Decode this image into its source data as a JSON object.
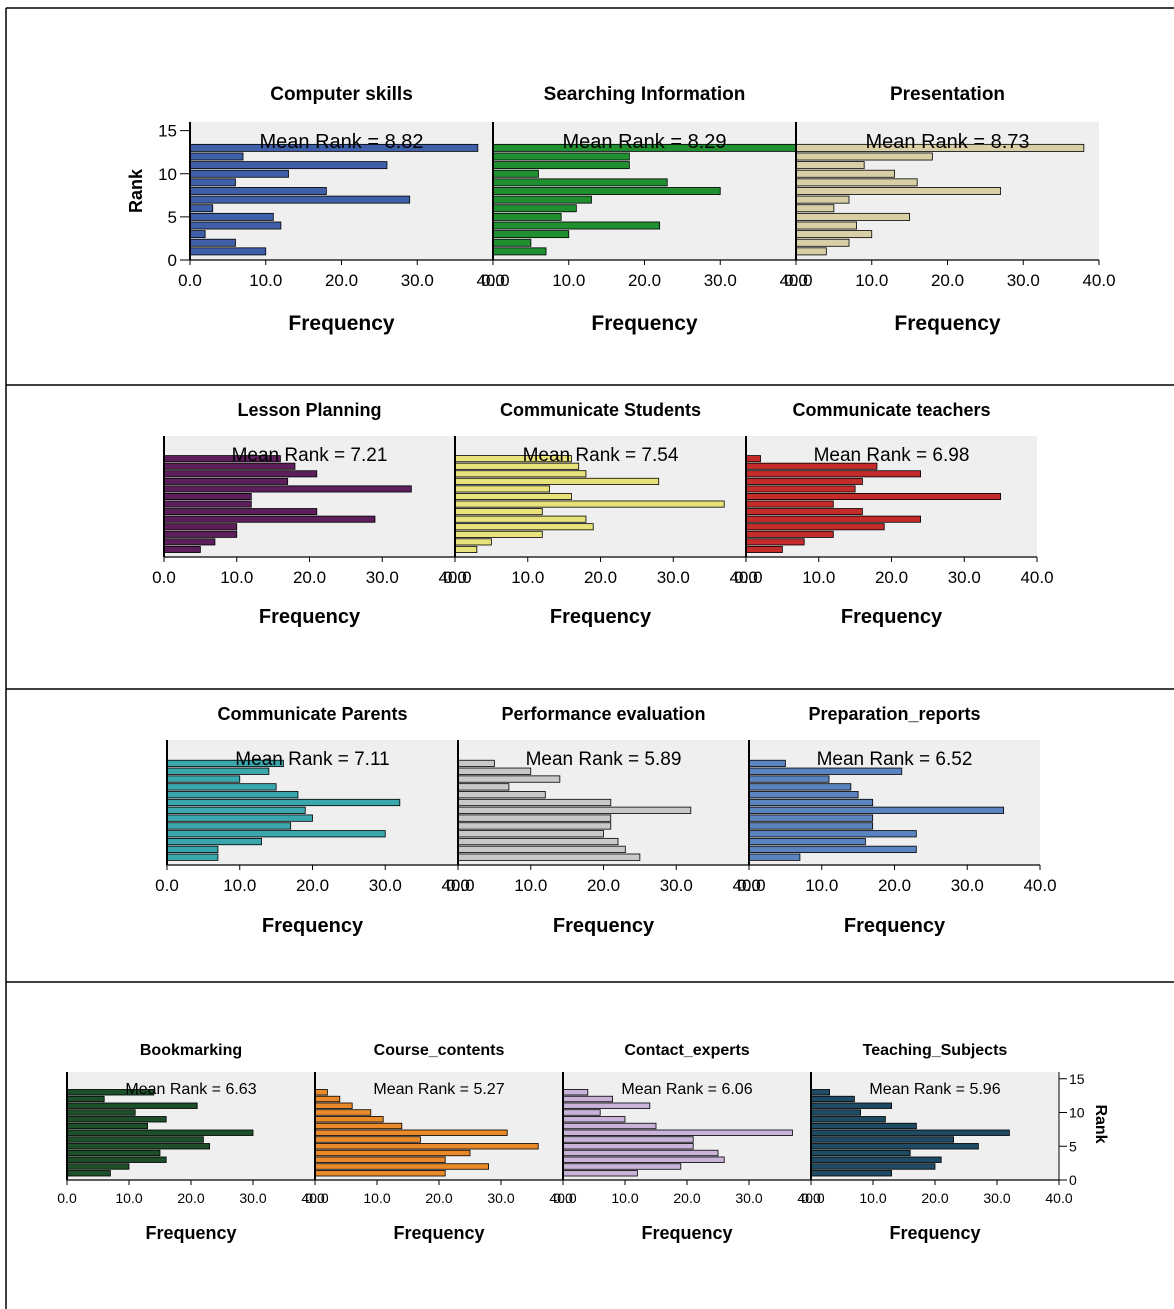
{
  "figure": {
    "x_axis_label": "Frequency",
    "y_axis_label": "Rank",
    "x_ticks": [
      "0.0",
      "10.0",
      "20.0",
      "30.0",
      "40.0"
    ],
    "y_ticks": [
      "0",
      "5",
      "10",
      "15"
    ],
    "plot_background": "#efefef"
  },
  "chart_data": [
    {
      "type": "bar",
      "orientation": "horizontal",
      "title": "Computer skills",
      "annotation": "Mean Rank = 8.82",
      "color": "#3f5fa8",
      "xlim": [
        0,
        40
      ],
      "ylim": [
        0,
        16
      ],
      "xlabel": "Frequency",
      "ylabel": "Rank",
      "ranks": [
        1,
        2,
        3,
        4,
        5,
        6,
        7,
        8,
        9,
        10,
        11,
        12,
        13
      ],
      "values": [
        10,
        6,
        2,
        12,
        11,
        3,
        29,
        18,
        6,
        13,
        26,
        7,
        38
      ]
    },
    {
      "type": "bar",
      "orientation": "horizontal",
      "title": "Searching Information",
      "annotation": "Mean Rank = 8.29",
      "color": "#1f8f2f",
      "xlim": [
        0,
        40
      ],
      "ylim": [
        0,
        16
      ],
      "xlabel": "Frequency",
      "ylabel": "",
      "ranks": [
        1,
        2,
        3,
        4,
        5,
        6,
        7,
        8,
        9,
        10,
        11,
        12,
        13
      ],
      "values": [
        7,
        5,
        10,
        22,
        9,
        11,
        13,
        30,
        23,
        6,
        18,
        18,
        40
      ]
    },
    {
      "type": "bar",
      "orientation": "horizontal",
      "title": "Presentation",
      "annotation": "Mean Rank = 8.73",
      "color": "#d9cfa6",
      "xlim": [
        0,
        40
      ],
      "ylim": [
        0,
        16
      ],
      "xlabel": "Frequency",
      "ylabel": "",
      "ranks": [
        1,
        2,
        3,
        4,
        5,
        6,
        7,
        8,
        9,
        10,
        11,
        12,
        13
      ],
      "values": [
        4,
        7,
        10,
        8,
        15,
        5,
        7,
        27,
        16,
        13,
        9,
        18,
        38
      ]
    },
    {
      "type": "bar",
      "orientation": "horizontal",
      "title": "Lesson Planning",
      "annotation": "Mean Rank = 7.21",
      "color": "#5c1f5c",
      "xlim": [
        0,
        40
      ],
      "ylim": [
        0,
        16
      ],
      "xlabel": "Frequency",
      "ylabel": "",
      "ranks": [
        1,
        2,
        3,
        4,
        5,
        6,
        7,
        8,
        9,
        10,
        11,
        12,
        13
      ],
      "values": [
        5,
        7,
        10,
        10,
        29,
        21,
        12,
        12,
        34,
        17,
        21,
        18,
        16
      ]
    },
    {
      "type": "bar",
      "orientation": "horizontal",
      "title": "Communicate Students",
      "annotation": "Mean Rank = 7.54",
      "color": "#e8e27a",
      "xlim": [
        0,
        40
      ],
      "ylim": [
        0,
        16
      ],
      "xlabel": "Frequency",
      "ylabel": "",
      "ranks": [
        1,
        2,
        3,
        4,
        5,
        6,
        7,
        8,
        9,
        10,
        11,
        12,
        13
      ],
      "values": [
        3,
        5,
        12,
        19,
        18,
        12,
        37,
        16,
        13,
        28,
        18,
        17,
        16
      ]
    },
    {
      "type": "bar",
      "orientation": "horizontal",
      "title": "Communicate teachers",
      "annotation": "Mean Rank = 6.98",
      "color": "#c42b2b",
      "xlim": [
        0,
        40
      ],
      "ylim": [
        0,
        16
      ],
      "xlabel": "Frequency",
      "ylabel": "",
      "ranks": [
        1,
        2,
        3,
        4,
        5,
        6,
        7,
        8,
        9,
        10,
        11,
        12,
        13
      ],
      "values": [
        5,
        8,
        12,
        19,
        24,
        16,
        12,
        35,
        15,
        16,
        24,
        18,
        2
      ]
    },
    {
      "type": "bar",
      "orientation": "horizontal",
      "title": "Communicate Parents",
      "annotation": "Mean Rank = 7.11",
      "color": "#3aa7ad",
      "xlim": [
        0,
        40
      ],
      "ylim": [
        0,
        16
      ],
      "xlabel": "Frequency",
      "ylabel": "",
      "ranks": [
        1,
        2,
        3,
        4,
        5,
        6,
        7,
        8,
        9,
        10,
        11,
        12,
        13
      ],
      "values": [
        7,
        7,
        13,
        30,
        17,
        20,
        19,
        32,
        18,
        15,
        10,
        14,
        16
      ]
    },
    {
      "type": "bar",
      "orientation": "horizontal",
      "title": "Performance evaluation",
      "annotation": "Mean Rank = 5.89",
      "color": "#c8c8c8",
      "xlim": [
        0,
        40
      ],
      "ylim": [
        0,
        16
      ],
      "xlabel": "Frequency",
      "ylabel": "",
      "ranks": [
        1,
        2,
        3,
        4,
        5,
        6,
        7,
        8,
        9,
        10,
        11,
        12,
        13
      ],
      "values": [
        25,
        23,
        22,
        20,
        21,
        21,
        32,
        21,
        12,
        7,
        14,
        10,
        5
      ]
    },
    {
      "type": "bar",
      "orientation": "horizontal",
      "title": "Preparation_reports",
      "annotation": "Mean Rank = 6.52",
      "color": "#5a84c0",
      "xlim": [
        0,
        40
      ],
      "ylim": [
        0,
        16
      ],
      "xlabel": "Frequency",
      "ylabel": "",
      "ranks": [
        1,
        2,
        3,
        4,
        5,
        6,
        7,
        8,
        9,
        10,
        11,
        12,
        13
      ],
      "values": [
        7,
        23,
        16,
        23,
        17,
        17,
        35,
        17,
        15,
        14,
        11,
        21,
        5
      ]
    },
    {
      "type": "bar",
      "orientation": "horizontal",
      "title": "Bookmarking",
      "annotation": "Mean Rank = 6.63",
      "color": "#1c4f2a",
      "xlim": [
        0,
        40
      ],
      "ylim": [
        0,
        16
      ],
      "xlabel": "Frequency",
      "ylabel": "",
      "ranks": [
        1,
        2,
        3,
        4,
        5,
        6,
        7,
        8,
        9,
        10,
        11,
        12,
        13
      ],
      "values": [
        7,
        10,
        16,
        15,
        23,
        22,
        30,
        13,
        16,
        11,
        21,
        6,
        14
      ]
    },
    {
      "type": "bar",
      "orientation": "horizontal",
      "title": "Course_contents",
      "annotation": "Mean Rank = 5.27",
      "color": "#e98a2a",
      "xlim": [
        0,
        40
      ],
      "ylim": [
        0,
        16
      ],
      "xlabel": "Frequency",
      "ylabel": "",
      "ranks": [
        1,
        2,
        3,
        4,
        5,
        6,
        7,
        8,
        9,
        10,
        11,
        12,
        13
      ],
      "values": [
        21,
        28,
        21,
        25,
        36,
        17,
        31,
        14,
        11,
        9,
        6,
        4,
        2
      ]
    },
    {
      "type": "bar",
      "orientation": "horizontal",
      "title": "Contact_experts",
      "annotation": "Mean Rank = 6.06",
      "color": "#c9b3d8",
      "xlim": [
        0,
        40
      ],
      "ylim": [
        0,
        16
      ],
      "xlabel": "Frequency",
      "ylabel": "",
      "ranks": [
        1,
        2,
        3,
        4,
        5,
        6,
        7,
        8,
        9,
        10,
        11,
        12,
        13
      ],
      "values": [
        12,
        19,
        26,
        25,
        21,
        21,
        37,
        15,
        10,
        6,
        14,
        8,
        4
      ]
    },
    {
      "type": "bar",
      "orientation": "horizontal",
      "title": "Teaching_Subjects",
      "annotation": "Mean Rank = 5.96",
      "color": "#1f4a63",
      "xlim": [
        0,
        40
      ],
      "ylim": [
        0,
        16
      ],
      "xlabel": "Frequency",
      "ylabel": "Rank",
      "ranks": [
        1,
        2,
        3,
        4,
        5,
        6,
        7,
        8,
        9,
        10,
        11,
        12,
        13
      ],
      "values": [
        13,
        20,
        21,
        16,
        27,
        23,
        32,
        17,
        12,
        8,
        13,
        7,
        3
      ]
    }
  ]
}
